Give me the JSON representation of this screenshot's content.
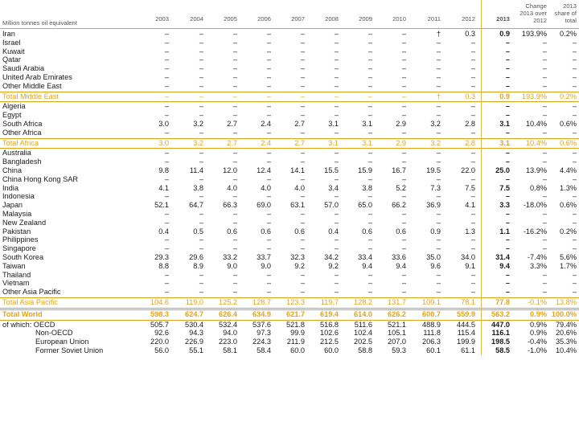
{
  "header": {
    "unit_label": "Million tonnes oil equivalent",
    "years": [
      "2003",
      "2004",
      "2005",
      "2006",
      "2007",
      "2008",
      "2009",
      "2010",
      "2011",
      "2012",
      "2013"
    ],
    "change_label": "Change 2013 over 2012",
    "share_label": "2013 share of total"
  },
  "rows": [
    {
      "type": "data",
      "label": "Iran",
      "values": [
        "–",
        "–",
        "–",
        "–",
        "–",
        "–",
        "–",
        "–",
        "†",
        "0.3",
        "0.9",
        "193.9%",
        "0.2%"
      ]
    },
    {
      "type": "data",
      "label": "Israel",
      "values": [
        "–",
        "–",
        "–",
        "–",
        "–",
        "–",
        "–",
        "–",
        "–",
        "–",
        "–",
        "–",
        "–"
      ]
    },
    {
      "type": "data",
      "label": "Kuwait",
      "values": [
        "–",
        "–",
        "–",
        "–",
        "–",
        "–",
        "–",
        "–",
        "–",
        "–",
        "–",
        "–",
        "–"
      ]
    },
    {
      "type": "data",
      "label": "Qatar",
      "values": [
        "–",
        "–",
        "–",
        "–",
        "–",
        "–",
        "–",
        "–",
        "–",
        "–",
        "–",
        "–",
        "–"
      ]
    },
    {
      "type": "data",
      "label": "Saudi Arabia",
      "values": [
        "–",
        "–",
        "–",
        "–",
        "–",
        "–",
        "–",
        "–",
        "–",
        "–",
        "–",
        "–",
        "–"
      ]
    },
    {
      "type": "data",
      "label": "United Arab Emirates",
      "values": [
        "–",
        "–",
        "–",
        "–",
        "–",
        "–",
        "–",
        "–",
        "–",
        "–",
        "–",
        "–",
        "–"
      ]
    },
    {
      "type": "data",
      "label": "Other Middle East",
      "values": [
        "–",
        "–",
        "–",
        "–",
        "–",
        "–",
        "–",
        "–",
        "–",
        "–",
        "–",
        "–",
        "–"
      ]
    },
    {
      "type": "total",
      "label": "Total Middle East",
      "values": [
        "–",
        "–",
        "–",
        "–",
        "–",
        "–",
        "–",
        "–",
        "†",
        "0.3",
        "0.9",
        "193.9%",
        "0.2%"
      ]
    },
    {
      "type": "data",
      "label": "Algeria",
      "values": [
        "–",
        "–",
        "–",
        "–",
        "–",
        "–",
        "–",
        "–",
        "–",
        "–",
        "–",
        "–",
        "–"
      ]
    },
    {
      "type": "data",
      "label": "Egypt",
      "values": [
        "–",
        "–",
        "–",
        "–",
        "–",
        "–",
        "–",
        "–",
        "–",
        "–",
        "–",
        "–",
        "–"
      ]
    },
    {
      "type": "data",
      "label": "South Africa",
      "values": [
        "3.0",
        "3.2",
        "2.7",
        "2.4",
        "2.7",
        "3.1",
        "3.1",
        "2.9",
        "3.2",
        "2.8",
        "3.1",
        "10.4%",
        "0.6%"
      ]
    },
    {
      "type": "data",
      "label": "Other Africa",
      "values": [
        "–",
        "–",
        "–",
        "–",
        "–",
        "–",
        "–",
        "–",
        "–",
        "–",
        "–",
        "–",
        "–"
      ]
    },
    {
      "type": "total",
      "label": "Total Africa",
      "values": [
        "3.0",
        "3.2",
        "2.7",
        "2.4",
        "2.7",
        "3.1",
        "3.1",
        "2.9",
        "3.2",
        "2.8",
        "3.1",
        "10.4%",
        "0.6%"
      ]
    },
    {
      "type": "data",
      "label": "Australia",
      "values": [
        "–",
        "–",
        "–",
        "–",
        "–",
        "–",
        "–",
        "–",
        "–",
        "–",
        "–",
        "–",
        "–"
      ]
    },
    {
      "type": "data",
      "label": "Bangladesh",
      "values": [
        "–",
        "–",
        "–",
        "–",
        "–",
        "–",
        "–",
        "–",
        "–",
        "–",
        "–",
        "–",
        "–"
      ]
    },
    {
      "type": "data",
      "label": "China",
      "values": [
        "9.8",
        "11.4",
        "12.0",
        "12.4",
        "14.1",
        "15.5",
        "15.9",
        "16.7",
        "19.5",
        "22.0",
        "25.0",
        "13.9%",
        "4.4%"
      ]
    },
    {
      "type": "data",
      "label": "China Hong Kong SAR",
      "values": [
        "–",
        "–",
        "–",
        "–",
        "–",
        "–",
        "–",
        "–",
        "–",
        "–",
        "–",
        "–",
        "–"
      ]
    },
    {
      "type": "data",
      "label": "India",
      "values": [
        "4.1",
        "3.8",
        "4.0",
        "4.0",
        "4.0",
        "3.4",
        "3.8",
        "5.2",
        "7.3",
        "7.5",
        "7.5",
        "0.8%",
        "1.3%"
      ]
    },
    {
      "type": "data",
      "label": "Indonesia",
      "values": [
        "–",
        "–",
        "–",
        "–",
        "–",
        "–",
        "–",
        "–",
        "–",
        "–",
        "–",
        "–",
        "–"
      ]
    },
    {
      "type": "data",
      "label": "Japan",
      "values": [
        "52.1",
        "64.7",
        "66.3",
        "69.0",
        "63.1",
        "57.0",
        "65.0",
        "66.2",
        "36.9",
        "4.1",
        "3.3",
        "-18.0%",
        "0.6%"
      ]
    },
    {
      "type": "data",
      "label": "Malaysia",
      "values": [
        "–",
        "–",
        "–",
        "–",
        "–",
        "–",
        "–",
        "–",
        "–",
        "–",
        "–",
        "–",
        "–"
      ]
    },
    {
      "type": "data",
      "label": "New Zealand",
      "values": [
        "–",
        "–",
        "–",
        "–",
        "–",
        "–",
        "–",
        "–",
        "–",
        "–",
        "–",
        "–",
        "–"
      ]
    },
    {
      "type": "data",
      "label": "Pakistan",
      "values": [
        "0.4",
        "0.5",
        "0.6",
        "0.6",
        "0.6",
        "0.4",
        "0.6",
        "0.6",
        "0.9",
        "1.3",
        "1.1",
        "-16.2%",
        "0.2%"
      ]
    },
    {
      "type": "data",
      "label": "Philippines",
      "values": [
        "–",
        "–",
        "–",
        "–",
        "–",
        "–",
        "–",
        "–",
        "–",
        "–",
        "–",
        "–",
        "–"
      ]
    },
    {
      "type": "data",
      "label": "Singapore",
      "values": [
        "–",
        "–",
        "–",
        "–",
        "–",
        "–",
        "–",
        "–",
        "–",
        "–",
        "–",
        "–",
        "–"
      ]
    },
    {
      "type": "data",
      "label": "South Korea",
      "values": [
        "29.3",
        "29.6",
        "33.2",
        "33.7",
        "32.3",
        "34.2",
        "33.4",
        "33.6",
        "35.0",
        "34.0",
        "31.4",
        "-7.4%",
        "5.6%"
      ]
    },
    {
      "type": "data",
      "label": "Taiwan",
      "values": [
        "8.8",
        "8.9",
        "9.0",
        "9.0",
        "9.2",
        "9.2",
        "9.4",
        "9.4",
        "9.6",
        "9.1",
        "9.4",
        "3.3%",
        "1.7%"
      ]
    },
    {
      "type": "data",
      "label": "Thailand",
      "values": [
        "–",
        "–",
        "–",
        "–",
        "–",
        "–",
        "–",
        "–",
        "–",
        "–",
        "–",
        "–",
        "–"
      ]
    },
    {
      "type": "data",
      "label": "Vietnam",
      "values": [
        "–",
        "–",
        "–",
        "–",
        "–",
        "–",
        "–",
        "–",
        "–",
        "–",
        "–",
        "–",
        "–"
      ]
    },
    {
      "type": "data",
      "label": "Other Asia Pacific",
      "values": [
        "–",
        "–",
        "–",
        "–",
        "–",
        "–",
        "–",
        "–",
        "–",
        "–",
        "–",
        "–",
        "–"
      ]
    },
    {
      "type": "total",
      "label": "Total Asia Pacific",
      "values": [
        "104.6",
        "119.0",
        "125.2",
        "128.7",
        "123.3",
        "119.7",
        "128.2",
        "131.7",
        "109.1",
        "78.1",
        "77.8",
        "-0.1%",
        "13.8%"
      ]
    },
    {
      "type": "world",
      "label": "Total World",
      "values": [
        "598.3",
        "624.7",
        "626.4",
        "634.9",
        "621.7",
        "619.4",
        "614.0",
        "626.2",
        "600.7",
        "559.9",
        "563.2",
        "0.9%",
        "100.0%"
      ]
    },
    {
      "type": "sub",
      "label": "of which: OECD",
      "values": [
        "505.7",
        "530.4",
        "532.4",
        "537.6",
        "521.8",
        "516.8",
        "511.6",
        "521.1",
        "488.9",
        "444.5",
        "447.0",
        "0.9%",
        "79.4%"
      ]
    },
    {
      "type": "sub",
      "label": "Non-OECD",
      "values": [
        "92.6",
        "94.3",
        "94.0",
        "97.3",
        "99.9",
        "102.6",
        "102.4",
        "105.1",
        "111.8",
        "115.4",
        "116.1",
        "0.9%",
        "20.6%"
      ]
    },
    {
      "type": "sub",
      "label": "European Union",
      "values": [
        "220.0",
        "226.9",
        "223.0",
        "224.3",
        "211.9",
        "212.5",
        "202.5",
        "207.0",
        "206.3",
        "199.9",
        "198.5",
        "-0.4%",
        "35.3%"
      ]
    },
    {
      "type": "sub",
      "label": "Former Soviet Union",
      "values": [
        "56.0",
        "55.1",
        "58.1",
        "58.4",
        "60.0",
        "60.0",
        "58.8",
        "59.3",
        "60.1",
        "61.1",
        "58.5",
        "-1.0%",
        "10.4%"
      ]
    }
  ]
}
